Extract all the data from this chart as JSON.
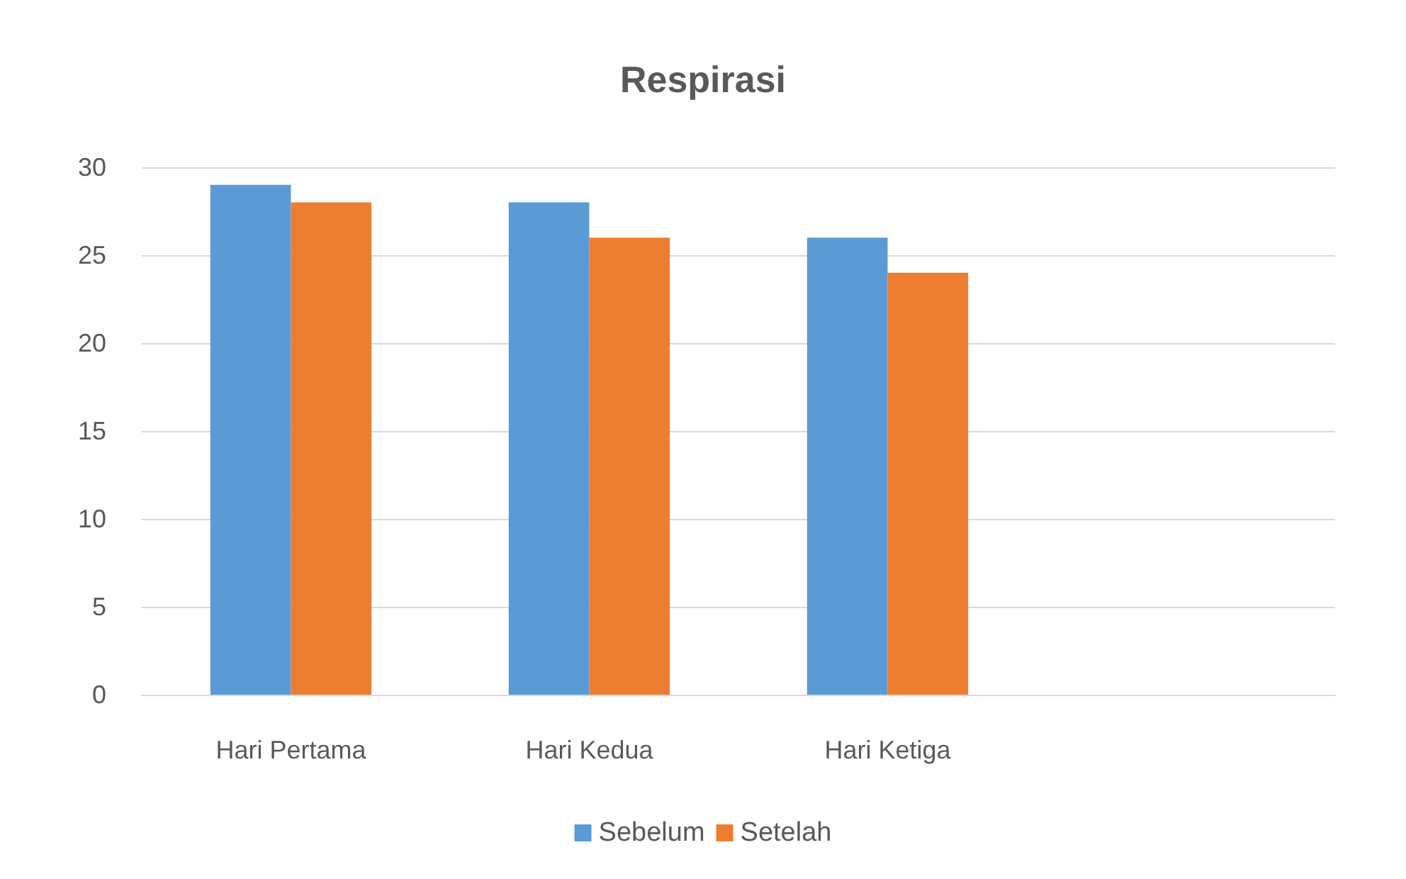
{
  "chart_data": {
    "type": "bar",
    "title": "Respirasi",
    "categories": [
      "Hari Pertama",
      "Hari Kedua",
      "Hari Ketiga",
      null
    ],
    "series": [
      {
        "name": "Sebelum",
        "color": "#5b9bd5",
        "values": [
          29,
          28,
          26,
          null
        ]
      },
      {
        "name": "Setelah",
        "color": "#ed7d31",
        "values": [
          28,
          26,
          24,
          null
        ]
      }
    ],
    "ylim": [
      0,
      30
    ],
    "yticks": [
      0,
      5,
      10,
      15,
      20,
      25,
      30
    ],
    "grid": "y",
    "legend": "bottom"
  }
}
